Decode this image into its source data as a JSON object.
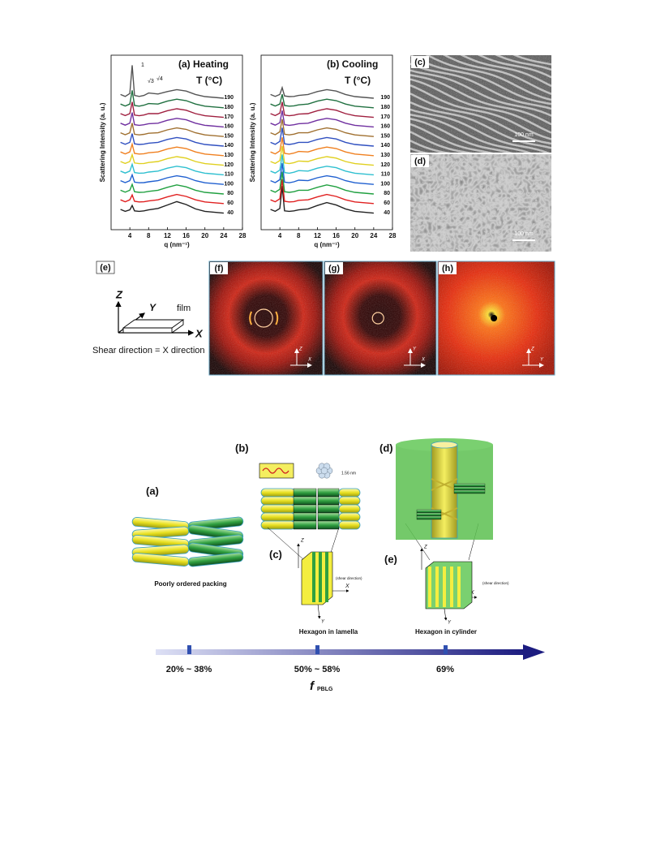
{
  "chart_data": [
    {
      "type": "line",
      "title": "(a) Heating",
      "legend_title": "T (°C)",
      "xlabel": "q (nm⁻¹)",
      "ylabel": "Scattering Intensity (a. u.)",
      "annotations": [
        "1",
        "√3",
        "√4"
      ],
      "x": [
        2,
        3,
        4,
        4.5,
        5,
        6,
        7,
        8,
        10,
        12,
        14,
        16,
        18,
        20,
        24
      ],
      "xlim": [
        0,
        28
      ],
      "xticks": [
        4,
        8,
        12,
        16,
        20,
        24,
        28
      ],
      "series": [
        {
          "name": "40",
          "color": "#222222",
          "values": [
            0.5,
            0.3,
            0.45,
            0.9,
            0.35,
            0.3,
            0.35,
            0.45,
            0.6,
            0.95,
            1.3,
            1.0,
            0.55,
            0.3,
            0.12
          ]
        },
        {
          "name": "60",
          "color": "#e02020",
          "values": [
            0.5,
            0.3,
            0.5,
            1.0,
            0.35,
            0.28,
            0.3,
            0.38,
            0.5,
            0.8,
            1.05,
            0.85,
            0.5,
            0.28,
            0.12
          ]
        },
        {
          "name": "80",
          "color": "#20a040",
          "values": [
            0.5,
            0.3,
            0.5,
            1.1,
            0.35,
            0.28,
            0.3,
            0.38,
            0.5,
            0.8,
            1.05,
            0.85,
            0.5,
            0.28,
            0.12
          ]
        },
        {
          "name": "100",
          "color": "#2060d0",
          "values": [
            0.5,
            0.3,
            0.5,
            1.1,
            0.35,
            0.28,
            0.3,
            0.38,
            0.5,
            0.8,
            1.0,
            0.85,
            0.5,
            0.28,
            0.12
          ]
        },
        {
          "name": "110",
          "color": "#30c0d0",
          "values": [
            0.5,
            0.3,
            0.5,
            1.2,
            0.35,
            0.28,
            0.3,
            0.4,
            0.5,
            0.8,
            1.0,
            0.85,
            0.5,
            0.28,
            0.12
          ]
        },
        {
          "name": "120",
          "color": "#e0d020",
          "values": [
            0.5,
            0.3,
            0.5,
            1.2,
            0.35,
            0.28,
            0.3,
            0.4,
            0.5,
            0.8,
            1.0,
            0.85,
            0.5,
            0.28,
            0.12
          ]
        },
        {
          "name": "130",
          "color": "#f08020",
          "values": [
            0.5,
            0.3,
            0.5,
            1.3,
            0.35,
            0.28,
            0.32,
            0.42,
            0.5,
            0.8,
            1.0,
            0.85,
            0.5,
            0.28,
            0.12
          ]
        },
        {
          "name": "140",
          "color": "#3050c0",
          "values": [
            0.5,
            0.3,
            0.5,
            1.4,
            0.35,
            0.28,
            0.32,
            0.42,
            0.5,
            0.8,
            1.0,
            0.85,
            0.5,
            0.28,
            0.12
          ]
        },
        {
          "name": "150",
          "color": "#a07030",
          "values": [
            0.5,
            0.3,
            0.5,
            1.5,
            0.35,
            0.28,
            0.34,
            0.45,
            0.5,
            0.8,
            1.0,
            0.85,
            0.5,
            0.28,
            0.12
          ]
        },
        {
          "name": "160",
          "color": "#7030a0",
          "values": [
            0.5,
            0.3,
            0.5,
            1.6,
            0.35,
            0.28,
            0.34,
            0.45,
            0.5,
            0.8,
            1.0,
            0.85,
            0.5,
            0.28,
            0.12
          ]
        },
        {
          "name": "170",
          "color": "#a02040",
          "values": [
            0.5,
            0.3,
            0.5,
            1.7,
            0.35,
            0.28,
            0.36,
            0.5,
            0.5,
            0.8,
            1.0,
            0.85,
            0.5,
            0.28,
            0.12
          ]
        },
        {
          "name": "180",
          "color": "#207040",
          "values": [
            0.5,
            0.3,
            0.5,
            1.9,
            0.35,
            0.28,
            0.38,
            0.55,
            0.5,
            0.8,
            1.0,
            0.85,
            0.5,
            0.28,
            0.12
          ]
        },
        {
          "name": "190",
          "color": "#555555",
          "values": [
            0.5,
            0.3,
            0.6,
            3.5,
            0.4,
            0.3,
            0.4,
            0.65,
            0.55,
            0.8,
            1.0,
            0.85,
            0.5,
            0.28,
            0.12
          ]
        }
      ]
    },
    {
      "type": "line",
      "title": "(b) Cooling",
      "legend_title": "T (°C)",
      "xlabel": "q (nm⁻¹)",
      "ylabel": "Scattering Intensity (a. u.)",
      "x": [
        2,
        3,
        4,
        4.5,
        5,
        6,
        7,
        8,
        10,
        12,
        14,
        16,
        18,
        20,
        24
      ],
      "xlim": [
        0,
        28
      ],
      "xticks": [
        4,
        8,
        12,
        16,
        20,
        24,
        28
      ],
      "series": [
        {
          "name": "40",
          "color": "#222222",
          "values": [
            0.5,
            0.3,
            0.6,
            2.9,
            0.35,
            0.3,
            0.35,
            0.45,
            0.55,
            0.9,
            1.2,
            0.95,
            0.55,
            0.3,
            0.12
          ]
        },
        {
          "name": "60",
          "color": "#e02020",
          "values": [
            0.5,
            0.3,
            0.6,
            2.6,
            0.35,
            0.28,
            0.32,
            0.45,
            0.5,
            0.8,
            1.05,
            0.85,
            0.5,
            0.28,
            0.12
          ]
        },
        {
          "name": "80",
          "color": "#20a040",
          "values": [
            0.5,
            0.3,
            0.6,
            2.4,
            0.35,
            0.28,
            0.35,
            0.5,
            0.5,
            0.8,
            1.05,
            0.85,
            0.5,
            0.28,
            0.12
          ]
        },
        {
          "name": "100",
          "color": "#2060d0",
          "values": [
            0.5,
            0.3,
            0.6,
            2.3,
            0.35,
            0.28,
            0.38,
            0.55,
            0.5,
            0.8,
            1.0,
            0.85,
            0.5,
            0.28,
            0.12
          ]
        },
        {
          "name": "110",
          "color": "#30c0d0",
          "values": [
            0.5,
            0.3,
            0.6,
            2.2,
            0.35,
            0.28,
            0.38,
            0.55,
            0.5,
            0.8,
            1.0,
            0.85,
            0.5,
            0.28,
            0.12
          ]
        },
        {
          "name": "120",
          "color": "#e0d020",
          "values": [
            0.5,
            0.3,
            0.6,
            2.1,
            0.35,
            0.28,
            0.38,
            0.55,
            0.5,
            0.8,
            1.0,
            0.85,
            0.5,
            0.28,
            0.12
          ]
        },
        {
          "name": "130",
          "color": "#f08020",
          "values": [
            0.5,
            0.3,
            0.6,
            2.0,
            0.35,
            0.28,
            0.38,
            0.55,
            0.5,
            0.8,
            1.0,
            0.85,
            0.5,
            0.28,
            0.12
          ]
        },
        {
          "name": "140",
          "color": "#3050c0",
          "values": [
            0.5,
            0.3,
            0.6,
            2.0,
            0.35,
            0.28,
            0.36,
            0.5,
            0.5,
            0.8,
            1.0,
            0.85,
            0.5,
            0.28,
            0.12
          ]
        },
        {
          "name": "150",
          "color": "#a07030",
          "values": [
            0.5,
            0.3,
            0.6,
            1.9,
            0.35,
            0.28,
            0.36,
            0.5,
            0.5,
            0.8,
            1.0,
            0.85,
            0.5,
            0.28,
            0.12
          ]
        },
        {
          "name": "160",
          "color": "#7030a0",
          "values": [
            0.5,
            0.3,
            0.55,
            1.8,
            0.35,
            0.28,
            0.34,
            0.45,
            0.5,
            0.8,
            1.0,
            0.85,
            0.5,
            0.28,
            0.12
          ]
        },
        {
          "name": "170",
          "color": "#a02040",
          "values": [
            0.5,
            0.3,
            0.55,
            1.7,
            0.35,
            0.28,
            0.34,
            0.45,
            0.5,
            0.8,
            1.0,
            0.85,
            0.5,
            0.28,
            0.12
          ]
        },
        {
          "name": "180",
          "color": "#207040",
          "values": [
            0.5,
            0.3,
            0.5,
            1.5,
            0.35,
            0.28,
            0.32,
            0.42,
            0.5,
            0.8,
            1.0,
            0.85,
            0.5,
            0.28,
            0.12
          ]
        },
        {
          "name": "190",
          "color": "#555555",
          "values": [
            0.5,
            0.3,
            0.5,
            1.2,
            0.35,
            0.28,
            0.3,
            0.4,
            0.5,
            0.8,
            1.0,
            0.85,
            0.5,
            0.28,
            0.12
          ]
        }
      ]
    }
  ],
  "micrographs": [
    {
      "label": "(c)",
      "scale_bar": "100 nm"
    },
    {
      "label": "(d)",
      "scale_bar": "100 nm"
    }
  ],
  "geometry": {
    "label": "(e)",
    "axes": [
      "Z",
      "Y",
      "X"
    ],
    "film": "film",
    "caption": "Shear direction = X direction"
  },
  "saxs_panels": [
    {
      "label": "(f)",
      "axes": [
        "Z",
        "X"
      ]
    },
    {
      "label": "(g)",
      "axes": [
        "Y",
        "X"
      ]
    },
    {
      "label": "(h)",
      "axes": [
        "Z",
        "Y"
      ]
    }
  ],
  "schematic": {
    "panels": [
      "(a)",
      "(b)",
      "(c)",
      "(d)",
      "(e)"
    ],
    "captions": [
      "Poorly ordered packing",
      "Hexagon in lamella",
      "Hexagon in cylinder"
    ],
    "spacing": "1.56 nm",
    "shear_label": "(shear direction)",
    "axes_c": [
      "Z",
      "X",
      "Y"
    ],
    "axes_e": [
      "Z",
      "X",
      "Y"
    ],
    "ranges": [
      "20% ~ 38%",
      "50% ~ 58%",
      "69%"
    ],
    "axis_label": "f",
    "axis_subscript": "PBLG"
  }
}
